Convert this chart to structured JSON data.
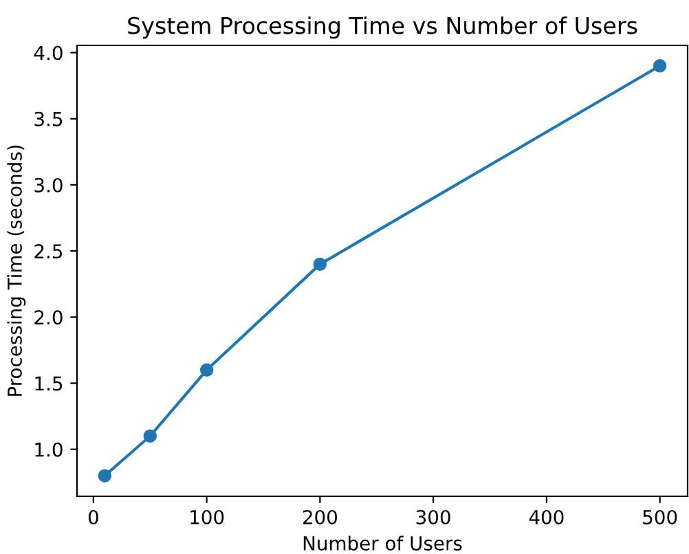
{
  "chart_data": {
    "type": "line",
    "title": "System Processing Time vs Number of Users",
    "xlabel": "Number of Users",
    "ylabel": "Processing Time (seconds)",
    "x": [
      10,
      50,
      100,
      200,
      500
    ],
    "series": [
      {
        "color": "#1f77b4",
        "values": [
          0.8,
          1.1,
          1.6,
          2.4,
          3.9
        ]
      }
    ],
    "xlim": [
      -14.5,
      524.5
    ],
    "xticks": [
      0,
      100,
      200,
      300,
      400,
      500
    ],
    "ylim": [
      0.645,
      4.055
    ],
    "yticks": [
      {
        "value": 1,
        "label": "1.0"
      },
      1.5,
      {
        "value": 2,
        "label": "2.0"
      },
      2.5,
      {
        "value": 3,
        "label": "3.0"
      },
      3.5,
      {
        "value": 4,
        "label": "4.0"
      }
    ],
    "marker": "circle",
    "line_style": "solid",
    "grid": false,
    "legend": false
  }
}
